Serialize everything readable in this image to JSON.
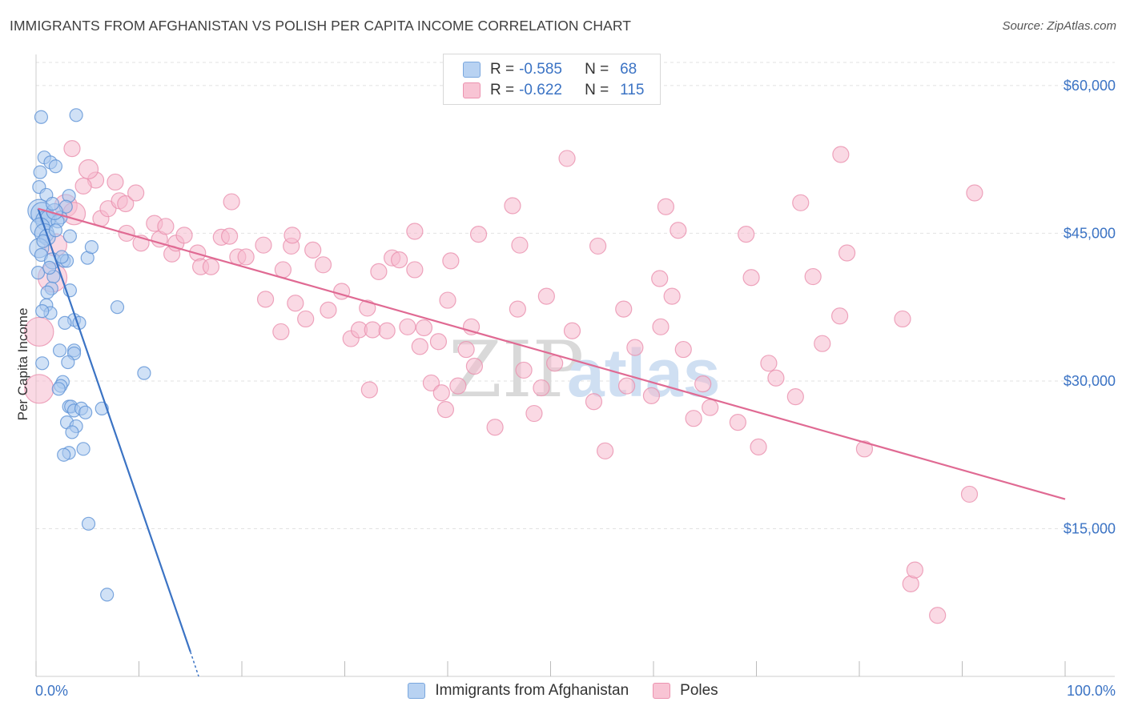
{
  "title": "IMMIGRANTS FROM AFGHANISTAN VS POLISH PER CAPITA INCOME CORRELATION CHART",
  "source": "Source: ZipAtlas.com",
  "watermark": {
    "zip": "ZIP",
    "atlas": "atlas"
  },
  "legend": {
    "blue": {
      "r_label": "R =",
      "r_value": "-0.585",
      "n_label": "N =",
      "n_value": "68"
    },
    "pink": {
      "r_label": "R =",
      "r_value": "-0.622",
      "n_label": "N =",
      "n_value": "115"
    }
  },
  "bottom_legend": {
    "blue": "Immigrants from Afghanistan",
    "pink": "Poles"
  },
  "chart_data": {
    "type": "scatter",
    "title": "IMMIGRANTS FROM AFGHANISTAN VS POLISH PER CAPITA INCOME CORRELATION CHART",
    "xlabel": "",
    "ylabel": "Per Capita Income",
    "xlim": [
      0,
      100
    ],
    "ylim": [
      0,
      63000
    ],
    "x_tick_labels": [
      "0.0%",
      "100.0%"
    ],
    "y_ticks": [
      15000,
      30000,
      45000,
      60000
    ],
    "y_tick_labels": [
      "$15,000",
      "$30,000",
      "$45,000",
      "$60,000"
    ],
    "colors": {
      "blue": "#3b73c4",
      "pink": "#e06a93",
      "blue_fill": "#a9c8ee",
      "pink_fill": "#f6b9cd"
    },
    "series": [
      {
        "name": "Immigrants from Afghanistan",
        "color": "blue",
        "trend": {
          "x0": 0.2,
          "y0": 47500,
          "x1": 15.0,
          "y1": 2500,
          "dash_to_x": 15.8,
          "dash_to_y": 0
        },
        "points": [
          [
            0.5,
            56800,
            8
          ],
          [
            3.9,
            57000,
            8
          ],
          [
            0.8,
            52700,
            8
          ],
          [
            1.4,
            52200,
            8
          ],
          [
            0.4,
            51200,
            8
          ],
          [
            1.9,
            51800,
            8
          ],
          [
            0.3,
            49700,
            8
          ],
          [
            1.0,
            48900,
            8
          ],
          [
            3.2,
            48800,
            8
          ],
          [
            0.3,
            47300,
            14
          ],
          [
            0.6,
            47000,
            14
          ],
          [
            0.9,
            46300,
            12
          ],
          [
            1.2,
            46500,
            10
          ],
          [
            2.4,
            46600,
            8
          ],
          [
            0.4,
            45600,
            12
          ],
          [
            0.8,
            45000,
            12
          ],
          [
            1.1,
            44600,
            10
          ],
          [
            0.3,
            43500,
            12
          ],
          [
            0.5,
            42800,
            8
          ],
          [
            1.6,
            42200,
            10
          ],
          [
            2.7,
            42200,
            8
          ],
          [
            3.0,
            42200,
            8
          ],
          [
            5.0,
            42500,
            8
          ],
          [
            5.4,
            43600,
            8
          ],
          [
            0.2,
            41000,
            8
          ],
          [
            1.7,
            40600,
            8
          ],
          [
            1.5,
            39400,
            8
          ],
          [
            3.3,
            39200,
            8
          ],
          [
            1.0,
            37700,
            8
          ],
          [
            1.4,
            36900,
            8
          ],
          [
            3.7,
            36200,
            8
          ],
          [
            7.9,
            37500,
            8
          ],
          [
            2.8,
            35900,
            8
          ],
          [
            4.2,
            35900,
            8
          ],
          [
            2.3,
            33100,
            8
          ],
          [
            3.7,
            33100,
            8
          ],
          [
            3.7,
            32800,
            8
          ],
          [
            0.6,
            31800,
            8
          ],
          [
            3.1,
            31900,
            8
          ],
          [
            10.5,
            30800,
            8
          ],
          [
            2.6,
            29900,
            8
          ],
          [
            2.4,
            29500,
            8
          ],
          [
            3.2,
            27400,
            8
          ],
          [
            3.4,
            27400,
            8
          ],
          [
            3.7,
            27000,
            8
          ],
          [
            4.4,
            27200,
            8
          ],
          [
            6.4,
            27200,
            8
          ],
          [
            3.0,
            25800,
            8
          ],
          [
            3.9,
            25400,
            8
          ],
          [
            3.2,
            22700,
            8
          ],
          [
            4.6,
            23100,
            8
          ],
          [
            5.1,
            15500,
            8
          ],
          [
            6.9,
            8300,
            8
          ],
          [
            1.3,
            41500,
            8
          ],
          [
            2.1,
            46200,
            8
          ],
          [
            2.9,
            47700,
            8
          ],
          [
            1.8,
            47200,
            10
          ],
          [
            0.7,
            44200,
            8
          ],
          [
            1.9,
            45300,
            8
          ],
          [
            2.5,
            42600,
            8
          ],
          [
            1.1,
            39000,
            8
          ],
          [
            0.6,
            37100,
            8
          ],
          [
            2.2,
            29200,
            8
          ],
          [
            4.8,
            26800,
            8
          ],
          [
            3.5,
            24800,
            8
          ],
          [
            2.7,
            22500,
            8
          ],
          [
            1.6,
            48000,
            8
          ],
          [
            3.3,
            44700,
            8
          ]
        ]
      },
      {
        "name": "Poles",
        "color": "pink",
        "trend": {
          "x0": 0.2,
          "y0": 47500,
          "x1": 100.0,
          "y1": 18000
        },
        "points": [
          [
            0.3,
            35000,
            18
          ],
          [
            0.3,
            29200,
            18
          ],
          [
            1.6,
            40500,
            18
          ],
          [
            1.9,
            43800,
            14
          ],
          [
            2.9,
            47800,
            14
          ],
          [
            3.7,
            47000,
            14
          ],
          [
            5.8,
            50400,
            10
          ],
          [
            6.3,
            46500,
            10
          ],
          [
            7.0,
            47500,
            10
          ],
          [
            8.1,
            48300,
            10
          ],
          [
            8.7,
            48000,
            10
          ],
          [
            8.8,
            45000,
            10
          ],
          [
            5.1,
            51500,
            12
          ],
          [
            4.6,
            49800,
            10
          ],
          [
            3.5,
            53600,
            10
          ],
          [
            7.7,
            50200,
            10
          ],
          [
            9.7,
            49100,
            10
          ],
          [
            10.2,
            44000,
            10
          ],
          [
            11.5,
            46000,
            10
          ],
          [
            12.0,
            44400,
            10
          ],
          [
            12.6,
            45700,
            10
          ],
          [
            13.2,
            42900,
            10
          ],
          [
            13.6,
            44000,
            10
          ],
          [
            14.4,
            44800,
            10
          ],
          [
            15.7,
            43000,
            10
          ],
          [
            16.0,
            41600,
            10
          ],
          [
            17.0,
            41600,
            10
          ],
          [
            18.0,
            44600,
            10
          ],
          [
            18.8,
            44700,
            10
          ],
          [
            19.6,
            42600,
            10
          ],
          [
            20.4,
            42600,
            10
          ],
          [
            19.0,
            48200,
            10
          ],
          [
            22.1,
            43800,
            10
          ],
          [
            22.3,
            38300,
            10
          ],
          [
            23.8,
            35000,
            10
          ],
          [
            24.0,
            41300,
            10
          ],
          [
            24.8,
            43700,
            10
          ],
          [
            25.2,
            37900,
            10
          ],
          [
            24.9,
            44800,
            10
          ],
          [
            26.2,
            36300,
            10
          ],
          [
            26.9,
            43300,
            10
          ],
          [
            27.9,
            41800,
            10
          ],
          [
            28.4,
            37200,
            10
          ],
          [
            29.7,
            39100,
            10
          ],
          [
            30.6,
            34300,
            10
          ],
          [
            31.4,
            35200,
            10
          ],
          [
            32.2,
            37400,
            10
          ],
          [
            32.4,
            29100,
            10
          ],
          [
            32.7,
            35200,
            10
          ],
          [
            33.3,
            41100,
            10
          ],
          [
            34.1,
            35100,
            10
          ],
          [
            34.6,
            42500,
            10
          ],
          [
            35.3,
            42300,
            10
          ],
          [
            36.1,
            35500,
            10
          ],
          [
            36.8,
            45200,
            10
          ],
          [
            36.8,
            41300,
            10
          ],
          [
            37.3,
            33500,
            10
          ],
          [
            37.7,
            35400,
            10
          ],
          [
            38.4,
            29800,
            10
          ],
          [
            39.1,
            34000,
            10
          ],
          [
            39.4,
            28800,
            10
          ],
          [
            39.8,
            27100,
            10
          ],
          [
            40.0,
            38200,
            10
          ],
          [
            40.3,
            42200,
            10
          ],
          [
            41.0,
            29500,
            10
          ],
          [
            41.8,
            33200,
            10
          ],
          [
            42.3,
            35500,
            10
          ],
          [
            42.6,
            31500,
            10
          ],
          [
            43.0,
            44900,
            10
          ],
          [
            44.6,
            25300,
            10
          ],
          [
            46.3,
            47800,
            10
          ],
          [
            46.8,
            37300,
            10
          ],
          [
            47.0,
            43800,
            10
          ],
          [
            47.4,
            31100,
            10
          ],
          [
            48.4,
            26700,
            10
          ],
          [
            49.1,
            29300,
            10
          ],
          [
            49.6,
            38600,
            10
          ],
          [
            50.4,
            31800,
            10
          ],
          [
            51.6,
            52600,
            10
          ],
          [
            52.1,
            35100,
            10
          ],
          [
            54.2,
            27900,
            10
          ],
          [
            54.6,
            43700,
            10
          ],
          [
            55.3,
            22900,
            10
          ],
          [
            57.1,
            37300,
            10
          ],
          [
            57.4,
            29500,
            10
          ],
          [
            58.2,
            33400,
            10
          ],
          [
            59.8,
            28500,
            10
          ],
          [
            60.7,
            35500,
            10
          ],
          [
            60.6,
            40400,
            10
          ],
          [
            61.8,
            38600,
            10
          ],
          [
            61.2,
            47700,
            10
          ],
          [
            62.4,
            45300,
            10
          ],
          [
            62.9,
            33200,
            10
          ],
          [
            63.9,
            26200,
            10
          ],
          [
            64.8,
            29700,
            10
          ],
          [
            65.5,
            27300,
            10
          ],
          [
            68.2,
            25800,
            10
          ],
          [
            69.0,
            44900,
            10
          ],
          [
            69.5,
            40500,
            10
          ],
          [
            70.2,
            23300,
            10
          ],
          [
            71.2,
            31800,
            10
          ],
          [
            71.9,
            30300,
            10
          ],
          [
            73.8,
            28400,
            10
          ],
          [
            74.3,
            48100,
            10
          ],
          [
            75.5,
            40600,
            10
          ],
          [
            76.4,
            33800,
            10
          ],
          [
            78.1,
            36600,
            10
          ],
          [
            78.2,
            53000,
            10
          ],
          [
            78.8,
            43000,
            10
          ],
          [
            80.5,
            23100,
            10
          ],
          [
            84.2,
            36300,
            10
          ],
          [
            85.0,
            9400,
            10
          ],
          [
            85.4,
            10800,
            10
          ],
          [
            87.6,
            6200,
            10
          ],
          [
            90.7,
            18500,
            10
          ],
          [
            91.2,
            49100,
            10
          ]
        ]
      }
    ]
  }
}
